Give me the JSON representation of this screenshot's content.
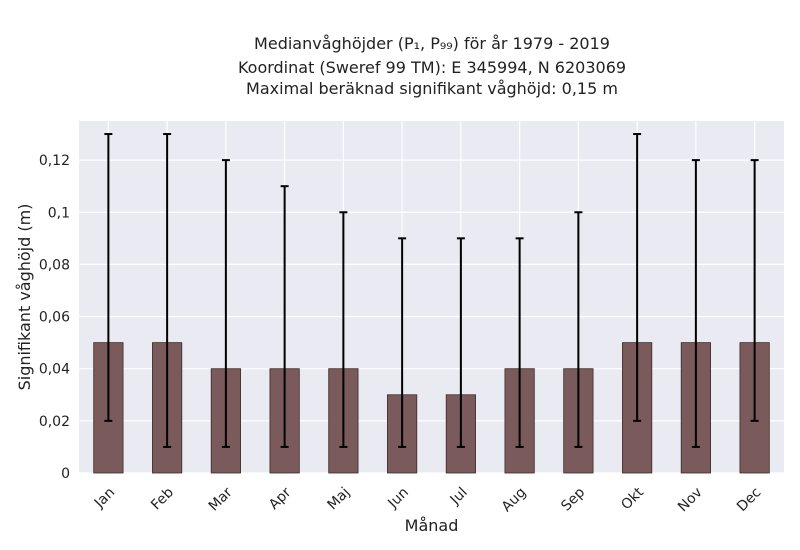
{
  "chart_data": {
    "type": "bar",
    "title_lines": [
      "Medianvåghöjder (P₁, P₉₉) för år 1979 - 2019",
      "Koordinat (Sweref 99 TM): E 345994, N 6203069",
      "Maximal beräknad signifikant våghöjd: 0,15 m"
    ],
    "xlabel": "Månad",
    "ylabel": "Signifikant våghöjd (m)",
    "categories": [
      "Jan",
      "Feb",
      "Mar",
      "Apr",
      "Maj",
      "Jun",
      "Jul",
      "Aug",
      "Sep",
      "Okt",
      "Nov",
      "Dec"
    ],
    "values": [
      0.05,
      0.05,
      0.04,
      0.04,
      0.04,
      0.03,
      0.03,
      0.04,
      0.04,
      0.05,
      0.05,
      0.05
    ],
    "p1": [
      0.02,
      0.01,
      0.01,
      0.01,
      0.01,
      0.01,
      0.01,
      0.01,
      0.01,
      0.02,
      0.01,
      0.02
    ],
    "p99": [
      0.13,
      0.13,
      0.12,
      0.11,
      0.1,
      0.09,
      0.09,
      0.09,
      0.1,
      0.13,
      0.12,
      0.12
    ],
    "ylim": [
      0,
      0.135
    ],
    "yticks": [
      0,
      0.02,
      0.04,
      0.06,
      0.08,
      0.1,
      0.12
    ],
    "ytick_labels": [
      "0",
      "0,02",
      "0,04",
      "0,06",
      "0,08",
      "0,1",
      "0,12"
    ],
    "grid": true,
    "colors": {
      "bar_fill": "#7a5a5a",
      "bar_edge": "#3a2a2a",
      "errorbar": "#000000",
      "plot_background": "#eaeaf2",
      "grid": "#ffffff"
    }
  }
}
